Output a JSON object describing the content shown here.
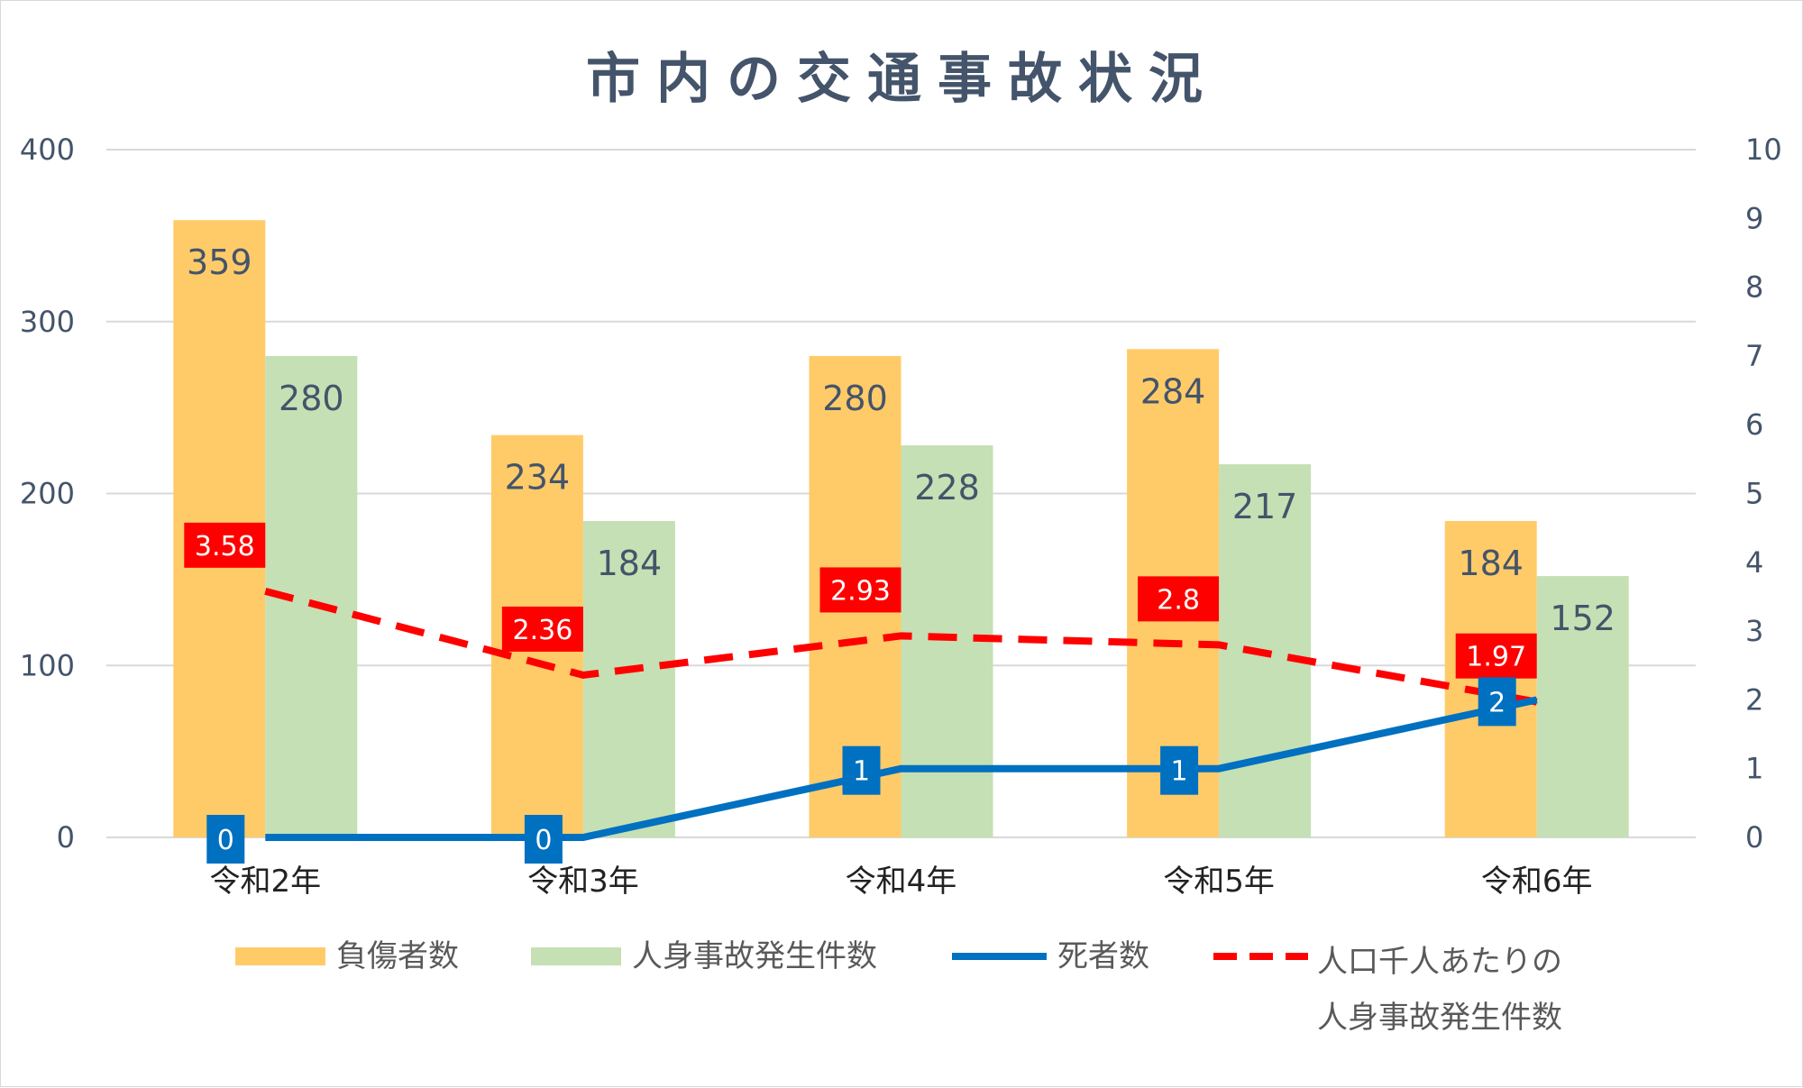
{
  "colors": {
    "injured": "#ffcb69",
    "accidents": "#c5e0b4",
    "deaths": "#0070c0",
    "rate": "#ff0000",
    "grid": "#d9d9d9",
    "text": "#44546a"
  },
  "chart_data": {
    "type": "bar",
    "title": "市内の交通事故状況",
    "categories": [
      "令和2年",
      "令和3年",
      "令和4年",
      "令和5年",
      "令和6年"
    ],
    "ylim": [
      0,
      400
    ],
    "yticks": [
      "0",
      "100",
      "200",
      "300",
      "400"
    ],
    "y2lim": [
      0,
      10
    ],
    "y2ticks": [
      "0",
      "1",
      "2",
      "3",
      "4",
      "5",
      "6",
      "7",
      "8",
      "9",
      "10"
    ],
    "series": [
      {
        "name": "負傷者数",
        "type": "bar",
        "axis": "left",
        "values": [
          359,
          234,
          280,
          284,
          184
        ]
      },
      {
        "name": "人身事故発生件数",
        "type": "bar",
        "axis": "left",
        "values": [
          280,
          184,
          228,
          217,
          152
        ]
      },
      {
        "name": "死者数",
        "type": "line",
        "axis": "right",
        "values": [
          0,
          0,
          1,
          1,
          2
        ]
      },
      {
        "name": "人口千人あたりの人身事故発生件数",
        "type": "line-dashed",
        "axis": "right",
        "values": [
          3.58,
          2.36,
          2.93,
          2.8,
          1.97
        ]
      }
    ],
    "legend": {
      "position": "bottom",
      "items": [
        "負傷者数",
        "人身事故発生件数",
        "死者数",
        "人口千人あたりの",
        "人身事故発生件数"
      ]
    }
  }
}
